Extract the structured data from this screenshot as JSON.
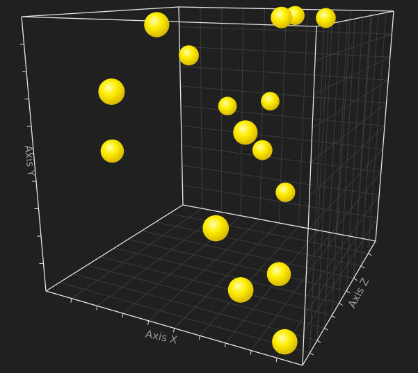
{
  "chart_data": {
    "type": "scatter",
    "projection": "3d",
    "xlabel": "Axis X",
    "ylabel": "Axis Y",
    "zlabel": "Axis Z",
    "xlim": [
      0,
      10
    ],
    "ylim": [
      0,
      10
    ],
    "zlim": [
      0,
      10
    ],
    "grid": true,
    "legend": "none",
    "background_color": "#202020",
    "frame_color": "#e6e6e6",
    "grid_color": "#3c3c3c",
    "point_color": "#ffee00",
    "points": [
      {
        "x": 8.94,
        "y": 0.05,
        "z": 1.17
      },
      {
        "x": 7.78,
        "y": 9.8,
        "z": 7.91
      },
      {
        "x": 6.0,
        "y": 9.8,
        "z": 8.86
      },
      {
        "x": 6.79,
        "y": 9.92,
        "z": 5.81
      },
      {
        "x": 2.91,
        "y": 7.53,
        "z": 0.07
      },
      {
        "x": 6.8,
        "y": 6.18,
        "z": 2.41
      },
      {
        "x": 6.57,
        "y": 3.5,
        "z": 0.1
      },
      {
        "x": 7.21,
        "y": 1.39,
        "z": 1.01
      },
      {
        "x": 8.11,
        "y": 1.5,
        "z": 2.77
      },
      {
        "x": 4.66,
        "y": 5.79,
        "z": 9.47
      },
      {
        "x": 6.16,
        "y": 2.34,
        "z": 8.16
      },
      {
        "x": 5.26,
        "y": 4.16,
        "z": 7.69
      },
      {
        "x": 2.1,
        "y": 8.02,
        "z": 7.45
      },
      {
        "x": 2.69,
        "y": 5.41,
        "z": 9.36
      },
      {
        "x": 1.0,
        "y": 4.56,
        "z": 3.6
      },
      {
        "x": 3.92,
        "y": 9.79,
        "z": 1.54
      }
    ]
  }
}
